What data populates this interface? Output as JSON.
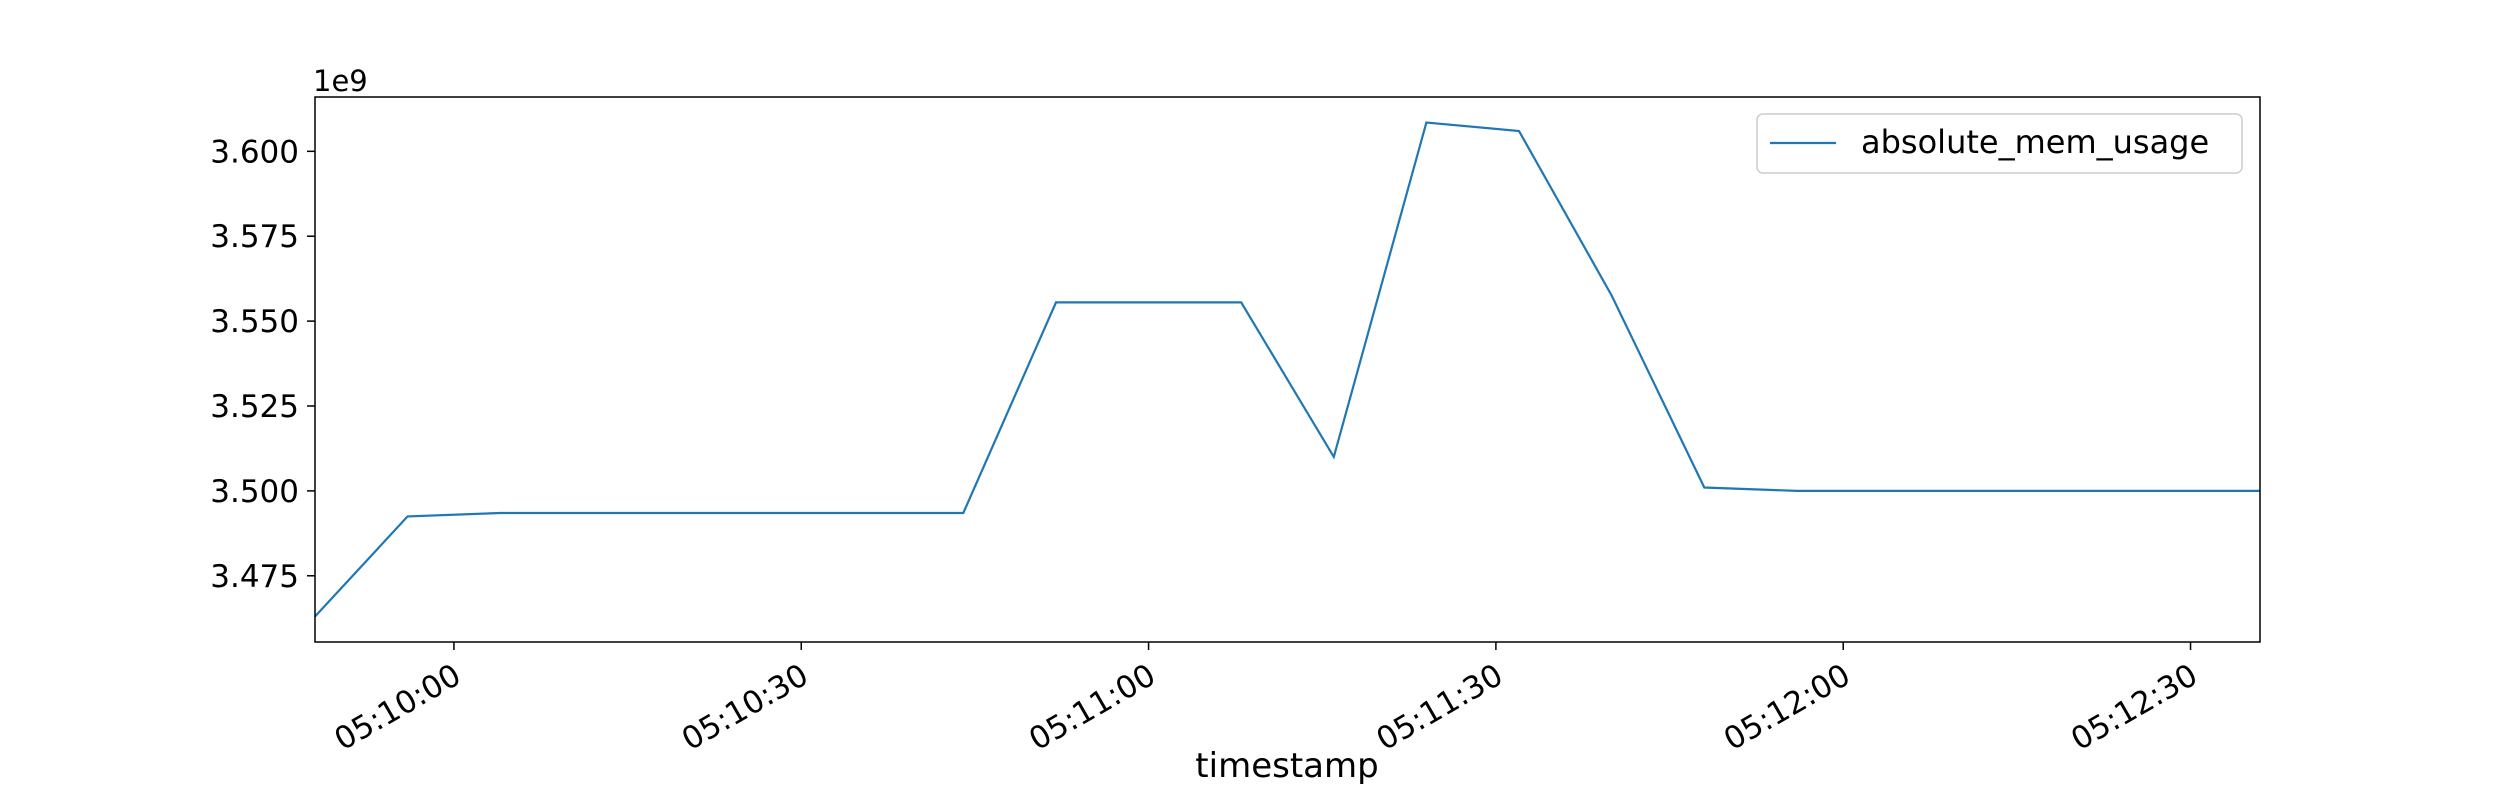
{
  "chart_data": {
    "type": "line",
    "xlabel": "timestamp",
    "ylabel": "",
    "y_offset_label": "1e9",
    "x": [
      "05:09:48",
      "05:09:56",
      "05:10:04",
      "05:10:12",
      "05:10:20",
      "05:10:28",
      "05:10:36",
      "05:10:44",
      "05:10:52",
      "05:11:00",
      "05:11:08",
      "05:11:16",
      "05:11:24",
      "05:11:32",
      "05:11:40",
      "05:11:48",
      "05:11:56",
      "05:12:04",
      "05:12:12",
      "05:12:20",
      "05:12:28",
      "05:12:36",
      "05:12:44"
    ],
    "xlim": [
      "05:09:48",
      "05:12:36"
    ],
    "xticks": [
      "05:10:00",
      "05:10:30",
      "05:11:00",
      "05:11:30",
      "05:12:00",
      "05:12:30"
    ],
    "series": [
      {
        "name": "absolute_mem_usage",
        "color": "#1f77b4",
        "values": [
          3463000000,
          3492500000,
          3493500000,
          3493500000,
          3493500000,
          3493500000,
          3493500000,
          3493500000,
          3555500000,
          3555500000,
          3555500000,
          3510000000,
          3608500000,
          3606000000,
          3557500000,
          3501000000,
          3500000000,
          3500000000,
          3500000000,
          3500000000,
          3500000000,
          3500000000,
          3500000000
        ]
      }
    ],
    "ylim": [
      3455500000,
      3616000000
    ],
    "yticks": [
      "3.475",
      "3.500",
      "3.525",
      "3.550",
      "3.575",
      "3.600"
    ],
    "ytick_values": [
      3475000000,
      3500000000,
      3525000000,
      3550000000,
      3575000000,
      3600000000
    ],
    "grid": false,
    "legend_position": "top-right"
  }
}
